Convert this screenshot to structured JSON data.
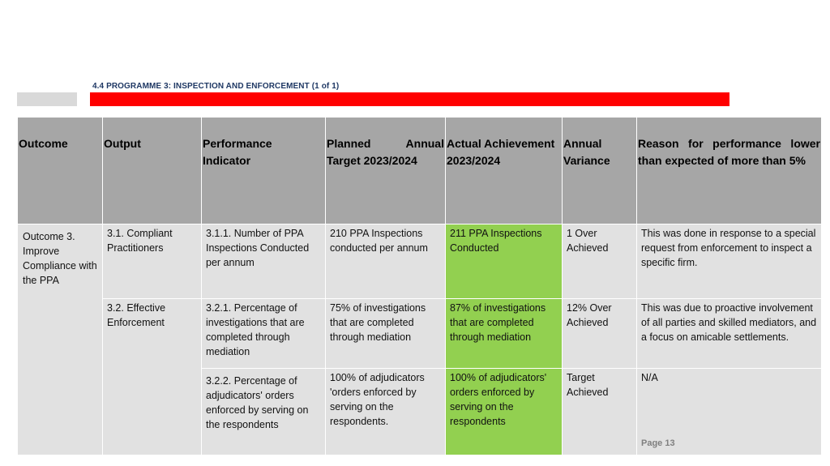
{
  "heading": "4.4 PROGRAMME 3: INSPECTION AND ENFORCEMENT (1 of 1)",
  "colors": {
    "heading": "#1f3864",
    "red_bar": "#ff0000",
    "header_bg": "#a6a6a6",
    "row_bg": "#e1e1e1",
    "achieved": "#92d050"
  },
  "table": {
    "headers": {
      "outcome": "Outcome",
      "output": "Output",
      "indicator": "Performance Indicator",
      "target": "Planned Annual Target 2023/2024",
      "actual": "Actual Achievement 2023/2024",
      "variance": "Annual Variance",
      "reason": "Reason for performance lower than expected of more than 5%"
    },
    "outcome": "Outcome 3. Improve Compliance with the PPA",
    "rows": [
      {
        "output": "3.1. Compliant Practitioners",
        "indicator": "3.1.1. Number of PPA Inspections Conducted per annum",
        "target": "210 PPA Inspections conducted per annum",
        "actual": "211 PPA Inspections Conducted",
        "variance": "1 Over Achieved",
        "reason": "This was done in response to a special request from enforcement to inspect a specific firm."
      },
      {
        "output": "3.2. Effective Enforcement",
        "indicator": "3.2.1. Percentage of investigations that are completed through mediation",
        "target": "75% of investigations that are completed through mediation",
        "actual": "87% of investigations that are completed through mediation",
        "variance": "12% Over Achieved",
        "reason": "This was due to proactive involvement of all parties and skilled mediators, and a focus on amicable settlements."
      },
      {
        "output": "",
        "indicator": "3.2.2. Percentage of adjudicators' orders enforced by serving on the respondents",
        "target": "100% of adjudicators 'orders enforced by serving on the respondents.",
        "actual": "100% of adjudicators' orders enforced by serving on the respondents",
        "variance": "Target Achieved",
        "reason": "N/A"
      }
    ]
  },
  "page_number": "Page 13"
}
